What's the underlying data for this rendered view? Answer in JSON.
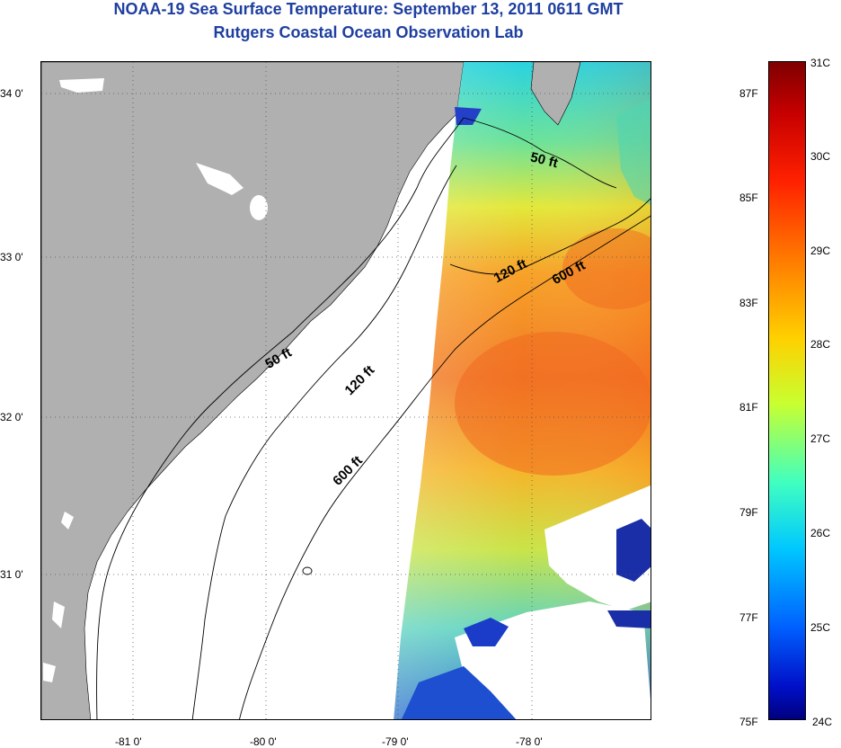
{
  "title": {
    "line1": "NOAA-19 Sea Surface Temperature:  September 13, 2011 0611 GMT",
    "line2": "Rutgers Coastal Ocean Observation Lab"
  },
  "map": {
    "lon_ticks": [
      "-81 0'",
      "-80 0'",
      "-79 0'",
      "-78 0'"
    ],
    "lat_ticks": [
      "34 0'",
      "33 0'",
      "32 0'",
      "31 0'"
    ],
    "depth_contours": [
      {
        "label": "50 ft",
        "instances": 2
      },
      {
        "label": "120 ft",
        "instances": 2
      },
      {
        "label": "600 ft",
        "instances": 2
      }
    ],
    "colors": {
      "land": "#b0b0b0",
      "no_data": "#ffffff",
      "title": "#1f3fa0"
    }
  },
  "colorbar": {
    "celsius_labels": [
      "31C",
      "30C",
      "29C",
      "28C",
      "27C",
      "26C",
      "25C",
      "24C"
    ],
    "fahrenheit_labels": [
      "87F",
      "85F",
      "83F",
      "81F",
      "79F",
      "77F",
      "75F"
    ],
    "celsius_range": [
      24,
      31
    ],
    "colormap": "jet"
  }
}
